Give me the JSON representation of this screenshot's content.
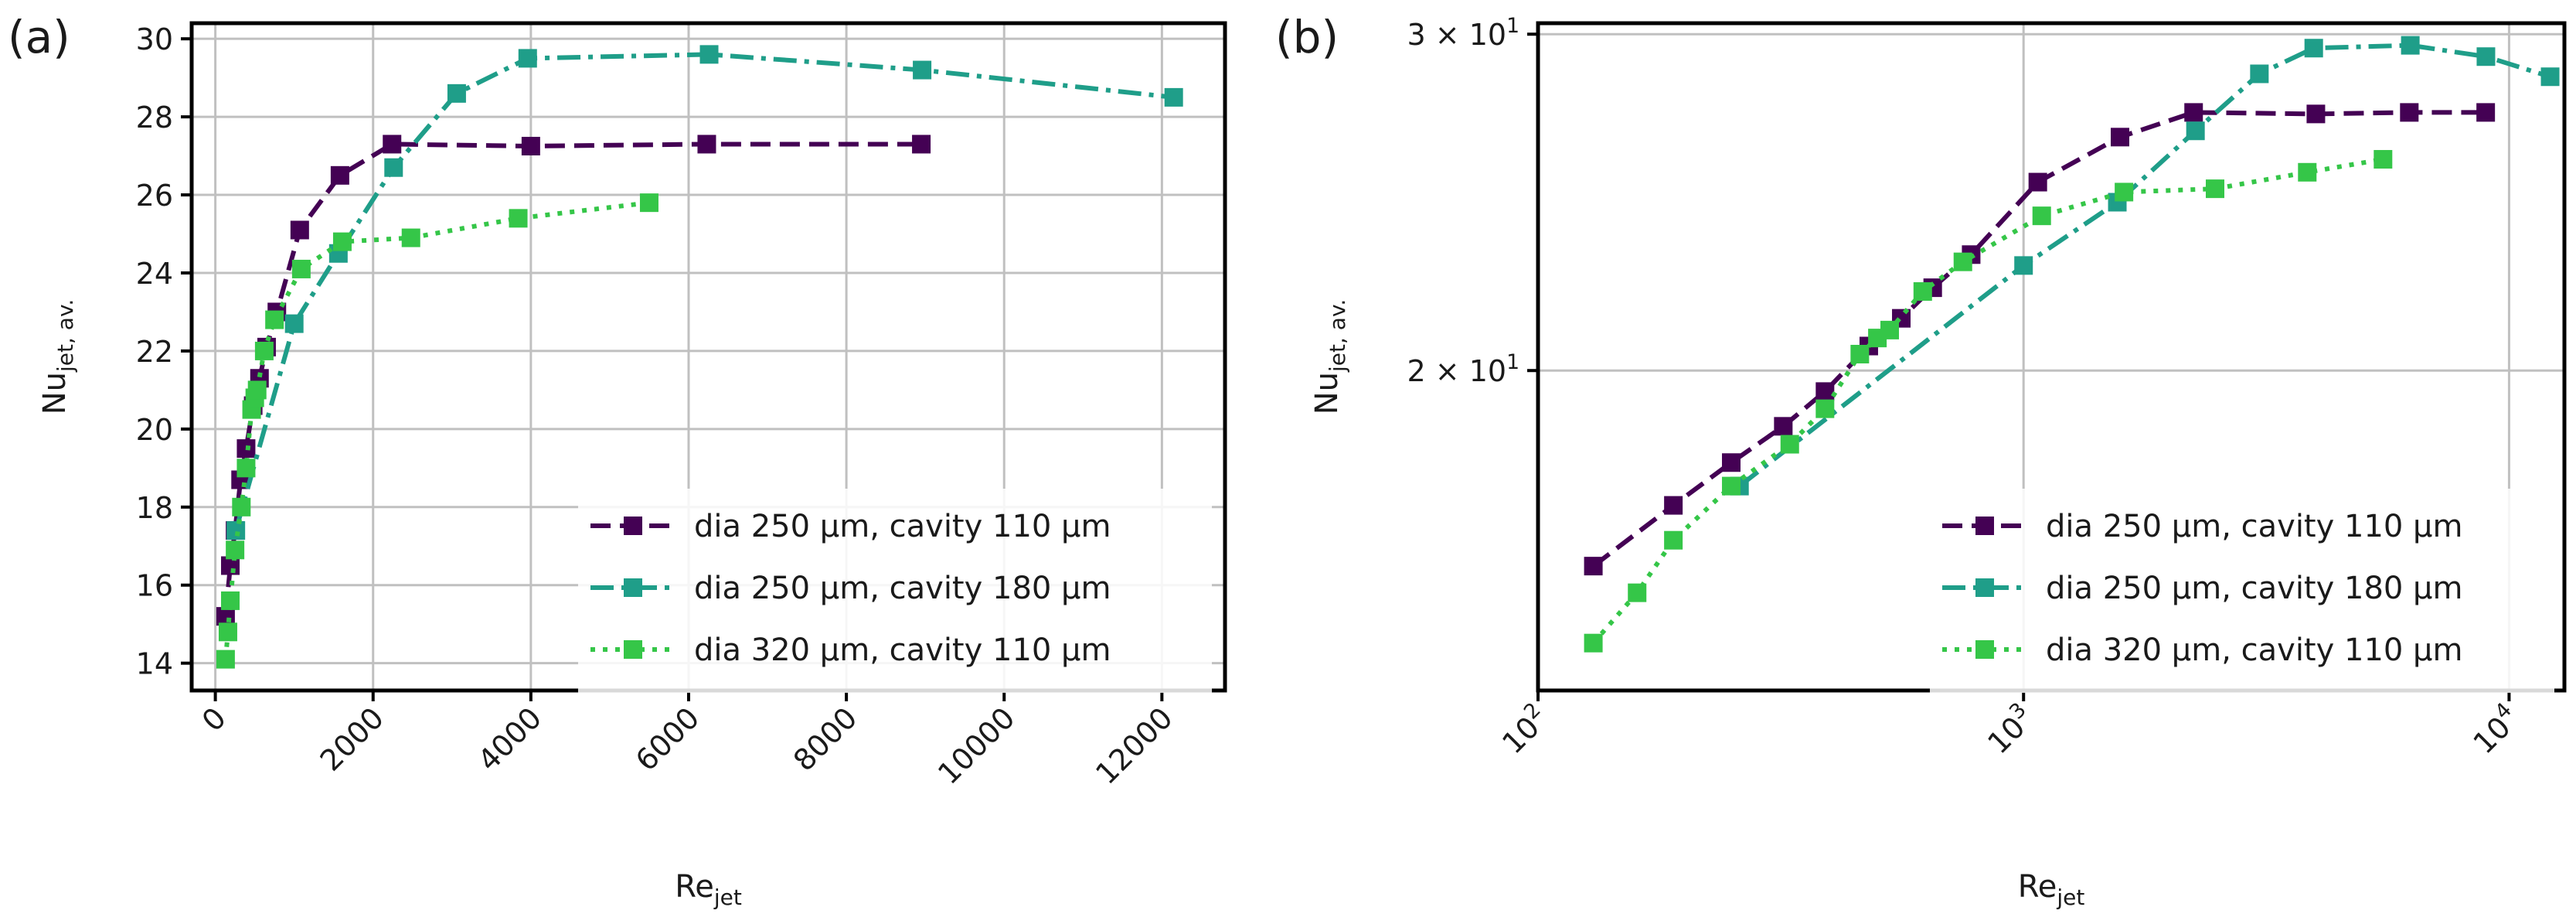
{
  "panel_labels": {
    "a": "(a)",
    "b": "(b)"
  },
  "chart_data": [
    {
      "id": "a",
      "type": "line",
      "x_scale": "linear",
      "y_scale": "linear",
      "xlabel_main": "Re",
      "xlabel_sub": "jet",
      "ylabel_main": "Nu",
      "ylabel_sub": "jet, av.",
      "xlim": [
        -300,
        12800
      ],
      "ylim": [
        13.3,
        30.4
      ],
      "x_ticks": [
        0,
        2000,
        4000,
        6000,
        8000,
        10000,
        12000
      ],
      "x_tick_labels": [
        "0",
        "2000",
        "4000",
        "6000",
        "8000",
        "10000",
        "12000"
      ],
      "y_ticks": [
        14,
        16,
        18,
        20,
        22,
        24,
        26,
        28,
        30
      ],
      "y_tick_labels": [
        "14",
        "16",
        "18",
        "20",
        "22",
        "24",
        "26",
        "28",
        "30"
      ],
      "grid": true,
      "legend_position": "lower-right",
      "series": [
        {
          "name": "dia 250 µm, cavity 110 µm",
          "color": "#440154",
          "dash": "dashed",
          "x": [
            130,
            190,
            250,
            320,
            390,
            480,
            560,
            650,
            780,
            1070,
            1580,
            2240,
            4000,
            6230,
            8950
          ],
          "y": [
            15.2,
            16.5,
            17.4,
            18.7,
            19.5,
            20.6,
            21.3,
            22.1,
            23.0,
            25.1,
            26.5,
            27.3,
            27.25,
            27.3,
            27.3
          ]
        },
        {
          "name": "dia 250 µm, cavity 180 µm",
          "color": "#1f9e89",
          "dash": "dashdot",
          "x": [
            260,
            1000,
            1560,
            2260,
            3060,
            3960,
            6260,
            8960,
            12150
          ],
          "y": [
            17.4,
            22.7,
            24.5,
            26.7,
            28.6,
            29.5,
            29.6,
            29.2,
            28.5
          ],
          "x_label_note": ""
        },
        {
          "name": "dia 320 µm, cavity 110 µm",
          "color": "#35c648",
          "dash": "dotted",
          "x": [
            130,
            160,
            190,
            250,
            330,
            390,
            460,
            500,
            530,
            620,
            750,
            1090,
            1610,
            2480,
            3840,
            5500
          ],
          "y": [
            14.1,
            14.8,
            15.6,
            16.9,
            18.0,
            19.0,
            20.5,
            20.8,
            21.0,
            22.0,
            22.8,
            24.1,
            24.8,
            24.9,
            25.4,
            25.8
          ]
        }
      ]
    },
    {
      "id": "b",
      "type": "line",
      "x_scale": "log",
      "y_scale": "log",
      "xlabel_main": "Re",
      "xlabel_sub": "jet",
      "ylabel_main": "Nu",
      "ylabel_sub": "jet, av.",
      "xlim": [
        100,
        13000
      ],
      "ylim": [
        13.6,
        30.4
      ],
      "x_ticks": [
        100,
        1000,
        10000
      ],
      "x_tick_base": "10",
      "x_tick_exps": [
        "2",
        "3",
        "4"
      ],
      "y_ticks": [
        20,
        30
      ],
      "y_tick_mantissa": [
        "2",
        "3"
      ],
      "y_tick_mult": " × 10",
      "y_tick_exp": "1",
      "grid": true,
      "legend_position": "lower-right",
      "series": [
        {
          "name": "dia 250 µm, cavity 110 µm",
          "color": "#440154",
          "dash": "dashed",
          "x": [
            130,
            190,
            250,
            320,
            390,
            480,
            560,
            650,
            780,
            1070,
            1580,
            2240,
            4000,
            6230,
            8950
          ],
          "y": [
            15.8,
            17.0,
            17.9,
            18.7,
            19.5,
            20.6,
            21.3,
            22.1,
            23.0,
            25.1,
            26.5,
            27.3,
            27.25,
            27.3,
            27.3
          ]
        },
        {
          "name": "dia 250 µm, cavity 180 µm",
          "color": "#1f9e89",
          "dash": "dashdot",
          "x": [
            260,
            1000,
            1560,
            2260,
            3060,
            3960,
            6260,
            8960,
            12150
          ],
          "y": [
            17.4,
            22.7,
            24.5,
            26.7,
            28.6,
            29.5,
            29.6,
            29.2,
            28.5
          ]
        },
        {
          "name": "dia 320 µm, cavity 110 µm",
          "color": "#35c648",
          "dash": "dotted",
          "x": [
            130,
            160,
            190,
            250,
            330,
            390,
            460,
            500,
            530,
            620,
            750,
            1090,
            1610,
            2480,
            3840,
            5500
          ],
          "y": [
            14.4,
            15.3,
            16.3,
            17.4,
            18.3,
            19.1,
            20.4,
            20.8,
            21.0,
            22.0,
            22.8,
            24.1,
            24.8,
            24.9,
            25.4,
            25.8
          ]
        }
      ]
    }
  ]
}
